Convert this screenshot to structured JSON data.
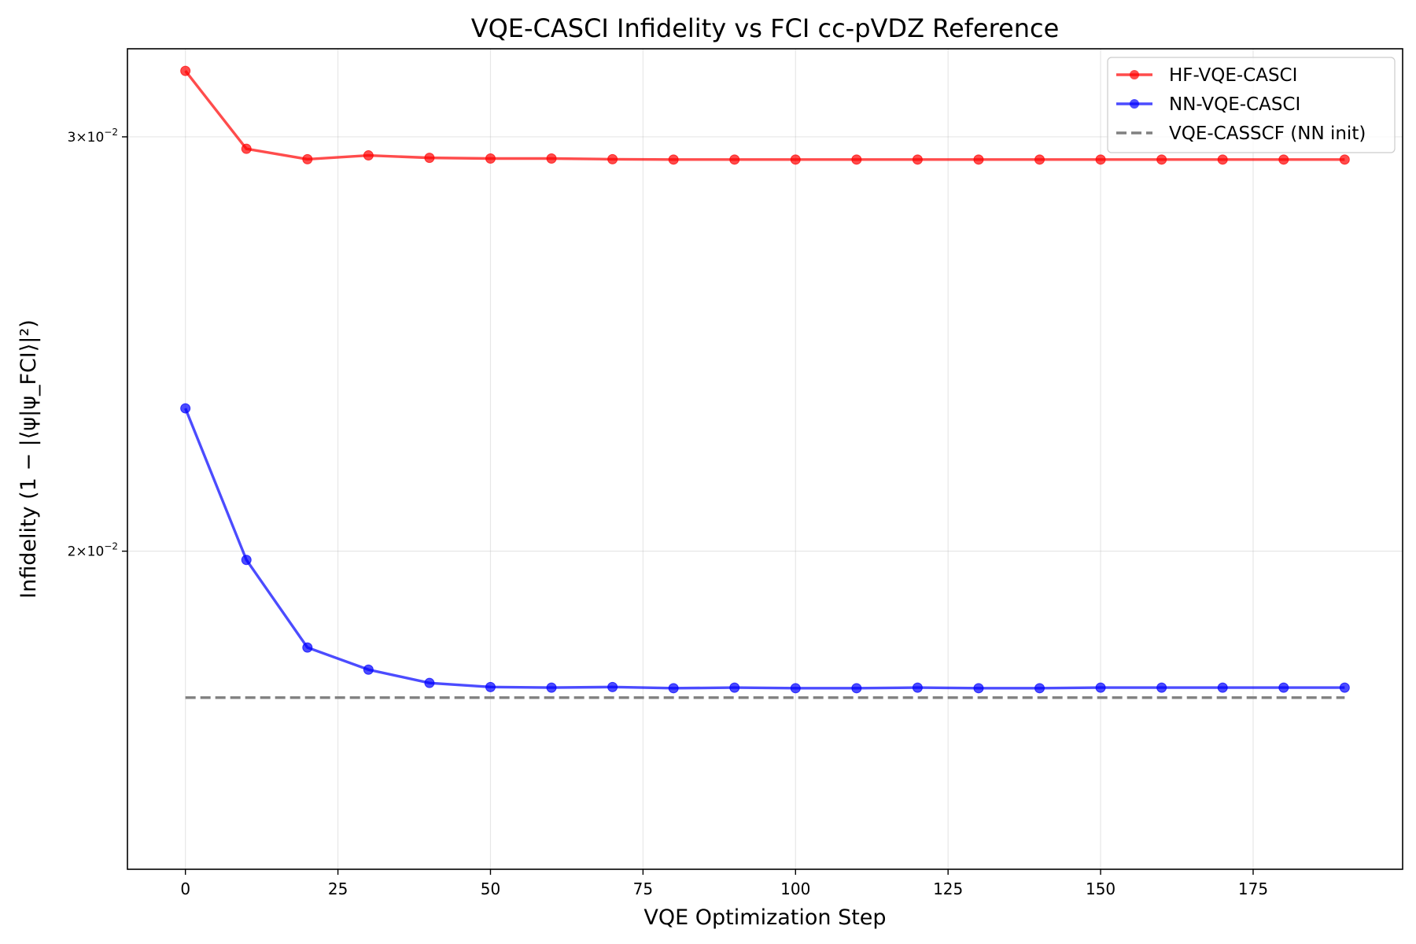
{
  "chart_data": {
    "type": "line",
    "title": "VQE-CASCI Infidelity vs FCI cc-pVDZ Reference",
    "xlabel": "VQE Optimization Step",
    "ylabel": "Infidelity (1 − |⟨ψ|ψ_FCI⟩|²)",
    "yscale": "log",
    "xlim": [
      -9.5,
      199.5
    ],
    "ylim": [
      0.01465,
      0.0327
    ],
    "xticks": [
      0,
      25,
      50,
      75,
      100,
      125,
      150,
      175
    ],
    "xtick_labels": [
      "0",
      "25",
      "50",
      "75",
      "100",
      "125",
      "150",
      "175"
    ],
    "yticks": [
      0.02,
      0.03
    ],
    "ytick_labels": [
      {
        "base": "2",
        "exp": "−2"
      },
      {
        "base": "3",
        "exp": "−2"
      }
    ],
    "grid": true,
    "legend_position": "upper right",
    "x": [
      0,
      10,
      20,
      30,
      40,
      50,
      60,
      70,
      80,
      90,
      100,
      110,
      120,
      130,
      140,
      150,
      160,
      170,
      180,
      190
    ],
    "series": [
      {
        "name": "HF-VQE-CASCI",
        "color": "#ff0000",
        "marker": "circle",
        "style": "solid",
        "values": [
          0.032,
          0.02965,
          0.02935,
          0.02946,
          0.02939,
          0.02937,
          0.02937,
          0.02935,
          0.02934,
          0.02934,
          0.02934,
          0.02934,
          0.02934,
          0.02934,
          0.02934,
          0.02934,
          0.02934,
          0.02934,
          0.02934,
          0.02934
        ]
      },
      {
        "name": "NN-VQE-CASCI",
        "color": "#0000ff",
        "marker": "circle",
        "style": "solid",
        "values": [
          0.023,
          0.01983,
          0.0182,
          0.01781,
          0.01758,
          0.01751,
          0.0175,
          0.01751,
          0.01749,
          0.0175,
          0.01749,
          0.01749,
          0.0175,
          0.01749,
          0.01749,
          0.0175,
          0.0175,
          0.0175,
          0.0175,
          0.0175
        ]
      },
      {
        "name": "VQE-CASSCF (NN init)",
        "color": "#808080",
        "marker": "none",
        "style": "dashed",
        "x": [
          0,
          190
        ],
        "values": [
          0.01733,
          0.01733
        ]
      }
    ]
  }
}
